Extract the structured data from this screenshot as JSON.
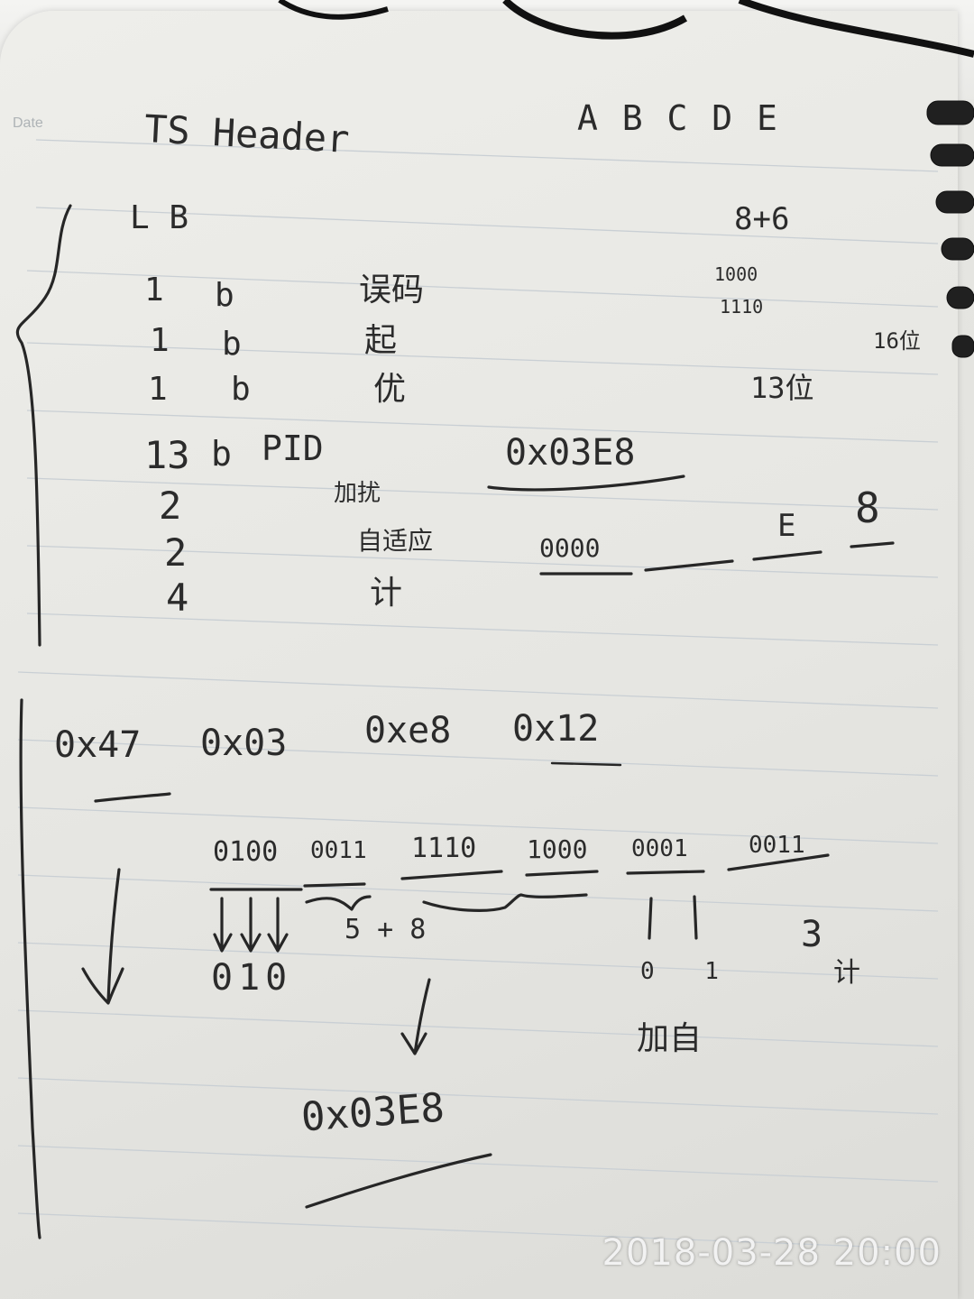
{
  "notebook": {
    "date_label": "Date"
  },
  "header": {
    "title": "TS Header",
    "letters": "A B C D E"
  },
  "table": {
    "column_header": "L B",
    "rows": [
      {
        "len": "1",
        "unit": "b",
        "label": "误码"
      },
      {
        "len": "1",
        "unit": "b",
        "label": "起"
      },
      {
        "len": "1",
        "unit": "b",
        "label": "优"
      },
      {
        "len": "13",
        "unit": "b",
        "label": "PID"
      },
      {
        "len": "2",
        "unit": "",
        "label": "加扰"
      },
      {
        "len": "2",
        "unit": "",
        "label": "自适应"
      },
      {
        "len": "4",
        "unit": "",
        "label": "计"
      }
    ],
    "right_top": "8+6",
    "right_bits": [
      "1000",
      "1110"
    ],
    "right_note_1": "13位",
    "right_note_2": "16位",
    "pid_hex": "0x03E8",
    "pid_split_1": "0000",
    "pid_split_2": "E",
    "pid_split_3": "8"
  },
  "example": {
    "bytes": [
      "0x47",
      "0x03",
      "0xe8",
      "0x12"
    ],
    "binary": [
      "0100",
      "0011",
      "1110",
      "1000",
      "0001",
      "0011"
    ],
    "flags": "010",
    "pid_bits_label": "5 + 8",
    "af_bits": "0 1",
    "af_label": "加自",
    "cc_value": "3",
    "cc_label": "计",
    "result": "0x03E8"
  },
  "camera": {
    "timestamp": "2018-03-28  20:00"
  }
}
